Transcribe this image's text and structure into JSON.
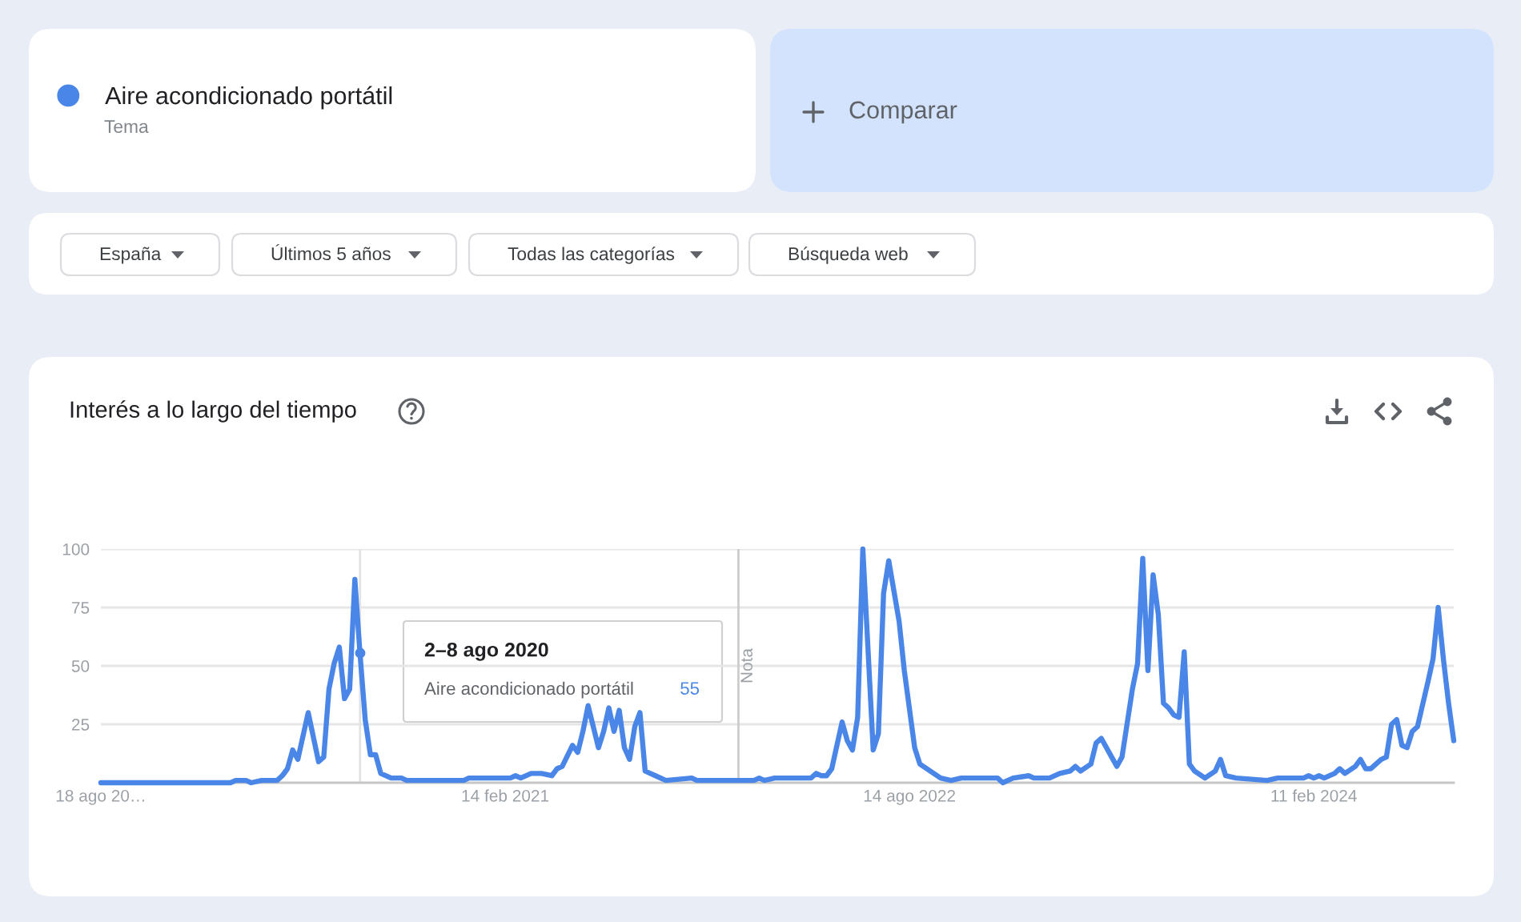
{
  "chart_data": {
    "type": "line",
    "title": "Interés a lo largo del tiempo",
    "x": [
      "2019-08-18",
      "2020-02-09",
      "2020-02-16",
      "2020-03-01",
      "2020-03-08",
      "2020-03-22",
      "2020-04-12",
      "2020-04-19",
      "2020-04-26",
      "2020-05-03",
      "2020-05-10",
      "2020-05-24",
      "2020-06-07",
      "2020-06-14",
      "2020-06-21",
      "2020-06-28",
      "2020-07-05",
      "2020-07-12",
      "2020-07-19",
      "2020-07-26",
      "2020-08-02",
      "2020-08-09",
      "2020-08-16",
      "2020-08-23",
      "2020-08-30",
      "2020-09-13",
      "2020-09-27",
      "2020-10-04",
      "2020-12-20",
      "2020-12-27",
      "2021-02-21",
      "2021-02-28",
      "2021-03-07",
      "2021-03-21",
      "2021-04-04",
      "2021-04-18",
      "2021-04-25",
      "2021-05-02",
      "2021-05-16",
      "2021-05-23",
      "2021-05-30",
      "2021-06-06",
      "2021-06-20",
      "2021-06-27",
      "2021-07-04",
      "2021-07-11",
      "2021-07-18",
      "2021-07-25",
      "2021-08-01",
      "2021-08-08",
      "2021-08-15",
      "2021-08-22",
      "2021-08-29",
      "2021-09-05",
      "2021-09-19",
      "2021-10-24",
      "2021-10-31",
      "2022-01-16",
      "2022-01-23",
      "2022-01-30",
      "2022-02-13",
      "2022-04-03",
      "2022-04-10",
      "2022-04-17",
      "2022-04-24",
      "2022-05-01",
      "2022-05-15",
      "2022-05-22",
      "2022-05-29",
      "2022-06-05",
      "2022-06-12",
      "2022-06-26",
      "2022-07-03",
      "2022-07-10",
      "2022-07-17",
      "2022-07-31",
      "2022-08-07",
      "2022-08-21",
      "2022-08-28",
      "2022-09-11",
      "2022-09-25",
      "2022-10-09",
      "2022-10-23",
      "2022-12-11",
      "2022-12-18",
      "2023-01-01",
      "2023-01-22",
      "2023-01-29",
      "2023-02-19",
      "2023-03-05",
      "2023-03-19",
      "2023-03-26",
      "2023-04-02",
      "2023-04-16",
      "2023-04-23",
      "2023-04-30",
      "2023-05-14",
      "2023-05-21",
      "2023-05-28",
      "2023-06-11",
      "2023-06-18",
      "2023-06-25",
      "2023-07-02",
      "2023-07-09",
      "2023-07-16",
      "2023-07-23",
      "2023-07-30",
      "2023-08-06",
      "2023-08-13",
      "2023-08-20",
      "2023-08-27",
      "2023-09-03",
      "2023-09-17",
      "2023-10-01",
      "2023-10-08",
      "2023-10-15",
      "2023-10-29",
      "2023-12-10",
      "2023-12-24",
      "2024-01-28",
      "2024-02-04",
      "2024-02-11",
      "2024-02-18",
      "2024-02-25",
      "2024-03-10",
      "2024-03-17",
      "2024-03-24",
      "2024-04-07",
      "2024-04-14",
      "2024-04-21",
      "2024-04-28",
      "2024-05-12",
      "2024-05-19",
      "2024-05-26",
      "2024-06-02",
      "2024-06-09",
      "2024-06-16",
      "2024-06-23",
      "2024-06-30",
      "2024-07-14",
      "2024-07-21",
      "2024-07-28",
      "2024-08-04",
      "2024-08-11",
      "2024-08-18"
    ],
    "series": [
      {
        "name": "Aire acondicionado portátil",
        "color": "#4a86e8",
        "values": [
          0,
          0,
          1,
          1,
          0,
          1,
          1,
          3,
          6,
          14,
          10,
          30,
          9,
          11,
          40,
          51,
          58,
          36,
          40,
          87,
          55,
          27,
          12,
          12,
          4,
          2,
          2,
          1,
          1,
          2,
          2,
          3,
          2,
          4,
          4,
          3,
          6,
          7,
          16,
          13,
          22,
          33,
          15,
          22,
          32,
          22,
          31,
          15,
          10,
          24,
          30,
          5,
          4,
          3,
          1,
          2,
          1,
          1,
          2,
          1,
          2,
          2,
          4,
          3,
          3,
          6,
          26,
          18,
          14,
          28,
          100,
          14,
          21,
          81,
          95,
          69,
          48,
          15,
          8,
          5,
          2,
          1,
          2,
          2,
          0,
          2,
          3,
          2,
          2,
          4,
          5,
          7,
          5,
          8,
          17,
          19,
          11,
          7,
          11,
          40,
          51,
          96,
          48,
          89,
          72,
          34,
          32,
          29,
          28,
          56,
          8,
          5,
          2,
          5,
          10,
          3,
          2,
          1,
          2,
          2,
          3,
          2,
          3,
          2,
          4,
          6,
          4,
          7,
          10,
          6,
          6,
          10,
          11,
          25,
          27,
          16,
          15,
          22,
          24,
          43,
          53,
          75,
          53,
          34,
          18
        ]
      }
    ],
    "xlim": [
      "2019-08-18",
      "2024-08-18"
    ],
    "ylim": [
      0,
      100
    ],
    "xticks": [
      {
        "value": "2019-08-18",
        "label": "18 ago 20…"
      },
      {
        "value": "2021-02-14",
        "label": "14 feb 2021"
      },
      {
        "value": "2022-08-14",
        "label": "14 ago 2022"
      },
      {
        "value": "2024-02-11",
        "label": "11 feb 2024"
      }
    ],
    "yticks": [
      25,
      50,
      75,
      100
    ],
    "grid": "y",
    "legend": "top left",
    "line_style": "solid",
    "ref_lines": [
      {
        "axis": "x",
        "value": "2021-12-26",
        "label": "Nota",
        "color": "#cccccc"
      },
      {
        "axis": "x",
        "value": "2020-08-02",
        "color": "#e3e3e3"
      }
    ],
    "annotations": [
      "Tema",
      "Comparar",
      "España",
      "Últimos 5 años",
      "Todas las categorías",
      "Búsqueda web",
      "2–8 ago 2020",
      "Aire acondicionado portátil",
      "55"
    ]
  }
}
